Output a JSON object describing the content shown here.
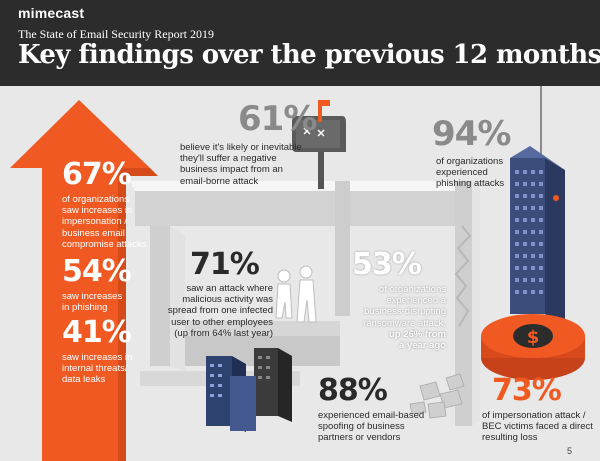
{
  "header": {
    "brand": "mimecast",
    "report_title": "The State of Email Security Report 2019",
    "headline": "Key findings over the previous 12 months"
  },
  "findings": {
    "impersonation": {
      "value": "67%",
      "text": [
        "of organizations",
        "saw increases in",
        "impersonation /",
        "business email",
        "compromise attacks"
      ]
    },
    "phishing_increase": {
      "value": "54%",
      "text": [
        "saw increases",
        "in phishing"
      ]
    },
    "internal_threats": {
      "value": "41%",
      "text": [
        "saw increases in",
        "internal threats/",
        "data leaks"
      ]
    },
    "business_impact": {
      "value": "61%",
      "text": [
        "believe it's likely or inevitable",
        "they'll suffer a negative",
        "business impact from an",
        "email-borne attack"
      ]
    },
    "phishing_experienced": {
      "value": "94%",
      "text": [
        "of organizations",
        "experienced",
        "phishing attacks"
      ]
    },
    "lateral_spread": {
      "value": "71%",
      "text": [
        "saw an attack where",
        "malicious activity was",
        "spread from one infected",
        "user to other employees",
        "(up from 64% last year)"
      ]
    },
    "ransomware": {
      "value": "53%",
      "text": [
        "of organizations",
        "experienced a",
        "business-disrupting",
        "ransomware attack,"
      ],
      "emphasis": [
        "up 26% from",
        "a year ago"
      ]
    },
    "spoofing": {
      "value": "88%",
      "text": [
        "experienced email-based",
        "spoofing of business",
        "partners or vendors"
      ]
    },
    "bec_loss": {
      "value": "73%",
      "text": [
        "of impersonation attack /",
        "BEC victims faced a direct",
        "resulting loss"
      ]
    }
  },
  "page_number": "5",
  "colors": {
    "orange": "#f05a22",
    "dark": "#2c2c2c",
    "wall": "#d8d8d8",
    "navy": "#2c3e66"
  },
  "icons": [
    "up-arrow-icon",
    "mailbox-icon",
    "fishing-hook-icon",
    "building-icon",
    "people-icon",
    "dollar-icon",
    "rubble-icon"
  ]
}
